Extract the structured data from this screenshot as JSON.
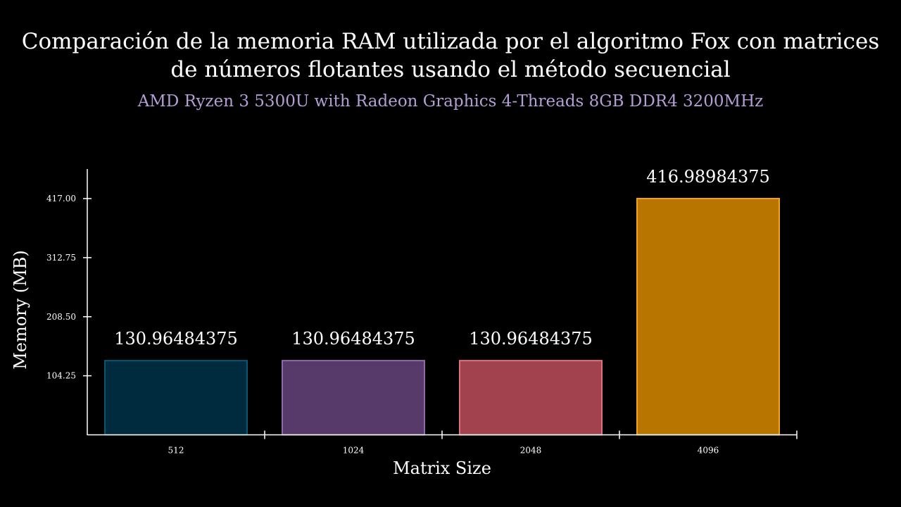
{
  "chart_data": {
    "type": "bar",
    "title_lines": [
      "Comparación de la memoria RAM utilizada por el algoritmo Fox con matrices",
      "de números flotantes usando el método secuencial"
    ],
    "subtitle": "AMD Ryzen 3 5300U with Radeon Graphics 4-Threads 8GB DDR4 3200MHz",
    "xlabel": "Matrix Size",
    "ylabel": "Memory (MB)",
    "categories": [
      "512",
      "1024",
      "2048",
      "4096"
    ],
    "values": [
      130.96484375,
      130.96484375,
      130.96484375,
      416.98984375
    ],
    "value_labels": [
      "130.96484375",
      "130.96484375",
      "130.96484375",
      "416.98984375"
    ],
    "y_ticks": [
      104.25,
      208.5,
      312.75,
      417.0
    ],
    "y_tick_labels": [
      "104.25",
      "208.50",
      "312.75",
      "417.00"
    ],
    "ylim": [
      0,
      417
    ],
    "grid": false,
    "colors": {
      "background": "#000000",
      "axis": "#ffffff",
      "subtitle": "#b59ed6",
      "bar_fills": [
        "#002a3e",
        "#573a6a",
        "#a3424f",
        "#b87500"
      ],
      "bar_strokes": [
        "#0a5673",
        "#8d6bab",
        "#e0707e",
        "#f2a21c"
      ]
    }
  }
}
